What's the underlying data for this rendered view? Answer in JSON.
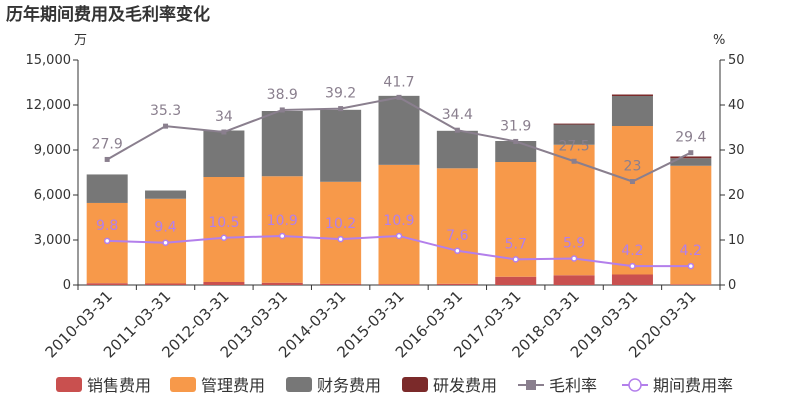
{
  "chart_data": {
    "type": "bar",
    "title": "历年期间费用及毛利率变化",
    "left_unit": "万",
    "right_unit": "%",
    "categories": [
      "2010-03-31",
      "2011-03-31",
      "2012-03-31",
      "2013-03-31",
      "2014-03-31",
      "2015-03-31",
      "2016-03-31",
      "2017-03-31",
      "2018-03-31",
      "2019-03-31",
      "2020-03-31"
    ],
    "ylim": [
      0,
      15000
    ],
    "yticks": [
      "0",
      "3,000",
      "6,000",
      "9,000",
      "12,000",
      "15,000"
    ],
    "y2lim": [
      0,
      50
    ],
    "y2ticks": [
      "0",
      "10",
      "20",
      "30",
      "40",
      "50"
    ],
    "stacked": true,
    "series": [
      {
        "name": "销售费用",
        "kind": "bar",
        "color": "#c9504f",
        "values": [
          120,
          100,
          200,
          150,
          80,
          60,
          80,
          550,
          650,
          700,
          50
        ]
      },
      {
        "name": "管理费用",
        "kind": "bar",
        "color": "#f7994a",
        "values": [
          5350,
          5650,
          7000,
          7100,
          6800,
          7950,
          7700,
          7650,
          8700,
          9900,
          7900
        ]
      },
      {
        "name": "财务费用",
        "kind": "bar",
        "color": "#777777",
        "values": [
          1900,
          550,
          3100,
          4350,
          4800,
          4600,
          2500,
          1400,
          1350,
          2000,
          500
        ]
      },
      {
        "name": "研发费用",
        "kind": "bar",
        "color": "#7b2a2a",
        "values": [
          0,
          0,
          0,
          0,
          0,
          0,
          0,
          0,
          60,
          100,
          120
        ]
      },
      {
        "name": "毛利率",
        "kind": "line",
        "axis": "right",
        "color": "#8a7f8e",
        "marker": "square",
        "values": [
          27.9,
          35.3,
          34,
          38.9,
          39.2,
          41.7,
          34.4,
          31.9,
          27.5,
          23,
          29.4
        ],
        "labels": [
          "27.9",
          "35.3",
          "34",
          "38.9",
          "39.2",
          "41.7",
          "34.4",
          "31.9",
          "27.5",
          "23",
          "29.4"
        ]
      },
      {
        "name": "期间费用率",
        "kind": "line",
        "axis": "right",
        "color": "#b37feb",
        "marker": "circle",
        "values": [
          9.8,
          9.4,
          10.5,
          10.9,
          10.2,
          10.9,
          7.6,
          5.7,
          5.9,
          4.2,
          4.2
        ],
        "labels": [
          "9.8",
          "9.4",
          "10.5",
          "10.9",
          "10.2",
          "10.9",
          "7.6",
          "5.7",
          "5.9",
          "4.2",
          "4.2"
        ]
      }
    ],
    "legend": "bottom",
    "grid": false
  }
}
